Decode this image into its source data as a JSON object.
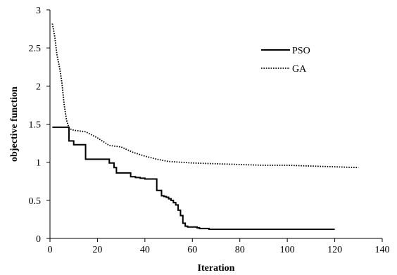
{
  "chart_data": {
    "type": "line",
    "title": "",
    "xlabel": "Iteration",
    "ylabel": "objective function",
    "xlim": [
      0,
      140
    ],
    "ylim": [
      0,
      3
    ],
    "xticks": [
      "0",
      "20",
      "40",
      "60",
      "80",
      "100",
      "120",
      "140"
    ],
    "yticks": [
      "0",
      "0.5",
      "1",
      "1.5",
      "2",
      "2.5",
      "3"
    ],
    "grid": false,
    "legend_position": "top-right",
    "series": [
      {
        "name": "PSO",
        "style": "solid",
        "color": "#000000",
        "step": true,
        "x": [
          1,
          7,
          8,
          10,
          15,
          25,
          27,
          28,
          34,
          36,
          38,
          40,
          44,
          45,
          47,
          48,
          49,
          50,
          51,
          52,
          53,
          54,
          55,
          56,
          57,
          58,
          62,
          63,
          67,
          120
        ],
        "y": [
          1.46,
          1.46,
          1.28,
          1.23,
          1.04,
          0.99,
          0.93,
          0.86,
          0.81,
          0.8,
          0.79,
          0.78,
          0.78,
          0.63,
          0.56,
          0.55,
          0.54,
          0.52,
          0.5,
          0.47,
          0.44,
          0.37,
          0.3,
          0.2,
          0.16,
          0.15,
          0.14,
          0.13,
          0.12,
          0.12
        ]
      },
      {
        "name": "GA",
        "style": "dotted",
        "color": "#000000",
        "step": false,
        "x": [
          1,
          2,
          3,
          4,
          5,
          6,
          7,
          8,
          9,
          10,
          15,
          20,
          25,
          30,
          35,
          40,
          45,
          50,
          60,
          70,
          80,
          90,
          100,
          110,
          120,
          130
        ],
        "y": [
          2.82,
          2.65,
          2.4,
          2.25,
          2.05,
          1.75,
          1.55,
          1.45,
          1.43,
          1.42,
          1.4,
          1.32,
          1.22,
          1.2,
          1.13,
          1.08,
          1.04,
          1.01,
          0.99,
          0.98,
          0.97,
          0.96,
          0.96,
          0.95,
          0.94,
          0.93
        ]
      }
    ]
  }
}
